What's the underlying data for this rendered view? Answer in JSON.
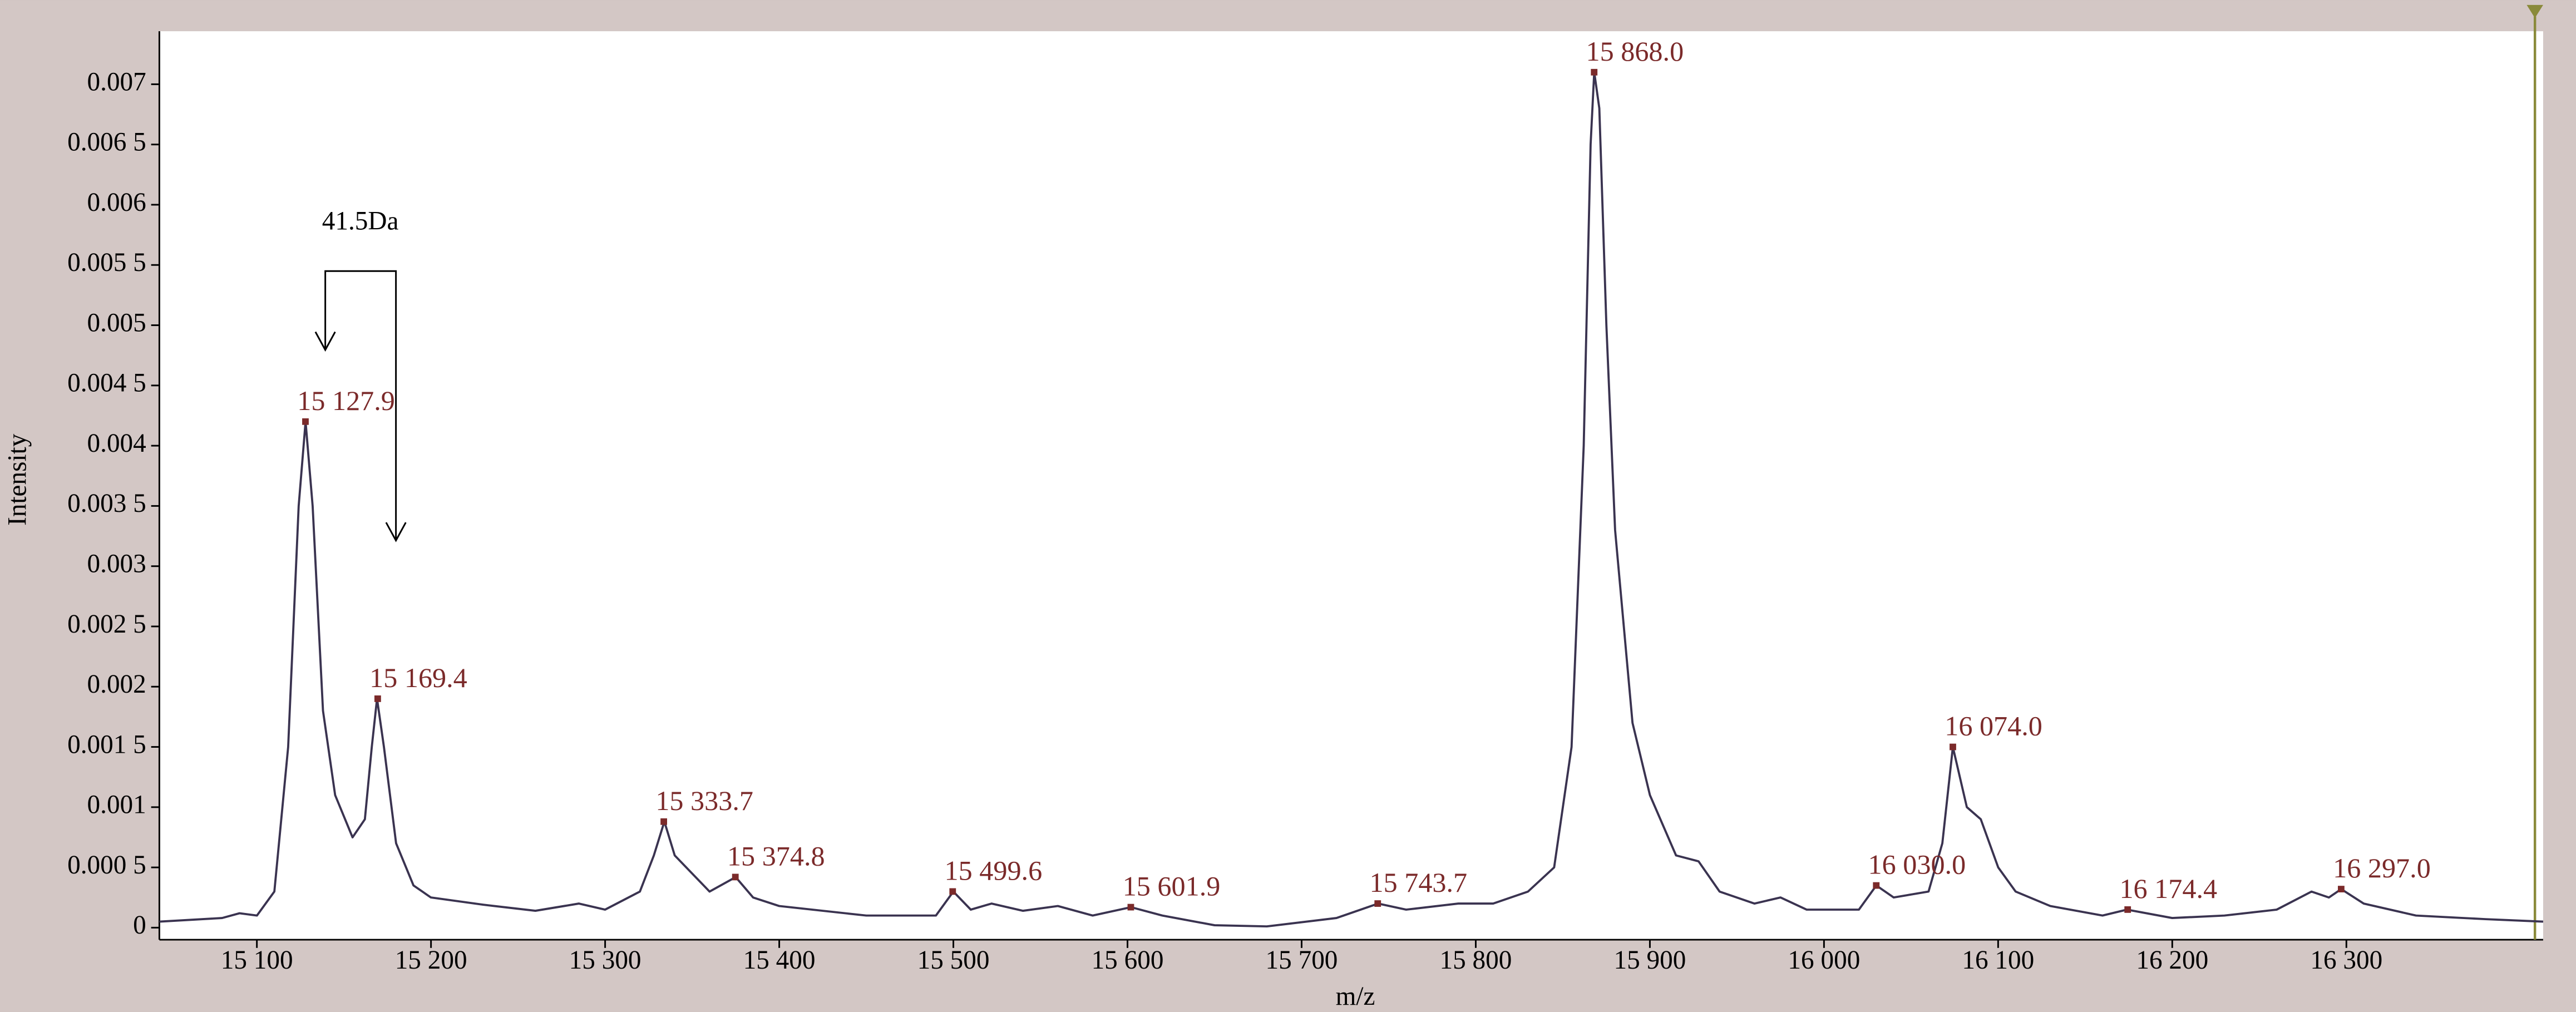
{
  "chart_data": {
    "type": "line",
    "x_label": "m/z",
    "y_label": "Intensity",
    "color": "#3a3350",
    "label_color": "#7b2a2a",
    "x": [
      15044,
      15080,
      15090,
      15100,
      15110,
      15118,
      15124,
      15128,
      15132,
      15138,
      15145,
      15155,
      15162,
      15166,
      15169,
      15173,
      15180,
      15190,
      15200,
      15230,
      15260,
      15285,
      15300,
      15320,
      15328,
      15334,
      15340,
      15350,
      15360,
      15375,
      15385,
      15400,
      15450,
      15490,
      15500,
      15510,
      15522,
      15540,
      15560,
      15580,
      15602,
      15620,
      15650,
      15680,
      15720,
      15744,
      15760,
      15790,
      15810,
      15830,
      15845,
      15855,
      15862,
      15866,
      15868,
      15871,
      15875,
      15880,
      15890,
      15900,
      15915,
      15928,
      15940,
      15960,
      15975,
      15990,
      16020,
      16030,
      16040,
      16060,
      16068,
      16074,
      16082,
      16090,
      16100,
      16110,
      16130,
      16160,
      16174,
      16200,
      16230,
      16260,
      16280,
      16290,
      16297,
      16310,
      16340,
      16380,
      16413
    ],
    "values": [
      5e-05,
      8e-05,
      0.00012,
      0.0001,
      0.0003,
      0.0015,
      0.0035,
      0.0042,
      0.0035,
      0.0018,
      0.0011,
      0.00075,
      0.0009,
      0.0015,
      0.0019,
      0.0015,
      0.0007,
      0.00035,
      0.00025,
      0.00019,
      0.00014,
      0.0002,
      0.00015,
      0.0003,
      0.0006,
      0.00088,
      0.0006,
      0.00045,
      0.0003,
      0.00042,
      0.00025,
      0.00018,
      0.0001,
      0.0001,
      0.0003,
      0.00015,
      0.0002,
      0.00014,
      0.00018,
      0.0001,
      0.00017,
      0.0001,
      2e-05,
      1e-05,
      8e-05,
      0.0002,
      0.00015,
      0.0002,
      0.0002,
      0.0003,
      0.0005,
      0.0015,
      0.004,
      0.0065,
      0.0071,
      0.0068,
      0.005,
      0.0033,
      0.0017,
      0.0011,
      0.0006,
      0.00055,
      0.0003,
      0.0002,
      0.00025,
      0.00015,
      0.00015,
      0.00035,
      0.00025,
      0.0003,
      0.0007,
      0.0015,
      0.001,
      0.0009,
      0.0005,
      0.0003,
      0.00018,
      0.0001,
      0.00015,
      8e-05,
      0.0001,
      0.00015,
      0.0003,
      0.00025,
      0.00032,
      0.0002,
      0.0001,
      7e-05,
      5e-05
    ],
    "peaks": {
      "x": [
        15127.9,
        15169.4,
        15333.7,
        15374.8,
        15499.6,
        15601.9,
        15743.7,
        15868.0,
        16030.0,
        16074.0,
        16174.4,
        16297.0
      ],
      "x_labels": [
        "15 127.9",
        "15 169.4",
        "15 333.7",
        "15 374.8",
        "15 499.6",
        "15 601.9",
        "15 743.7",
        "15 868.0",
        "16 030.0",
        "16 074.0",
        "16 174.4",
        "16 297.0"
      ],
      "values": [
        0.0042,
        0.0019,
        0.00088,
        0.00042,
        0.0003,
        0.00017,
        0.0002,
        0.0071,
        0.00035,
        0.0015,
        0.00015,
        0.00032
      ]
    },
    "annotation": "41.5Da",
    "xlim": [
      15044,
      16413
    ],
    "ylim": [
      -0.0001,
      0.00744
    ],
    "xticks": [
      {
        "value": 15100,
        "label": "15 100"
      },
      {
        "value": 15200,
        "label": "15 200"
      },
      {
        "value": 15300,
        "label": "15 300"
      },
      {
        "value": 15400,
        "label": "15 400"
      },
      {
        "value": 15500,
        "label": "15 500"
      },
      {
        "value": 15600,
        "label": "15 600"
      },
      {
        "value": 15700,
        "label": "15 700"
      },
      {
        "value": 15800,
        "label": "15 800"
      },
      {
        "value": 15900,
        "label": "15 900"
      },
      {
        "value": 16000,
        "label": "16 000"
      },
      {
        "value": 16100,
        "label": "16 100"
      },
      {
        "value": 16200,
        "label": "16 200"
      },
      {
        "value": 16300,
        "label": "16 300"
      }
    ],
    "yticks": [
      0,
      {
        "value": 0.0005,
        "label": "0.000 5"
      },
      0.001,
      {
        "value": 0.0015,
        "label": "0.001 5"
      },
      0.002,
      {
        "value": 0.0025,
        "label": "0.002 5"
      },
      0.003,
      {
        "value": 0.0035,
        "label": "0.003 5"
      },
      0.004,
      {
        "value": 0.0045,
        "label": "0.004 5"
      },
      0.005,
      {
        "value": 0.0055,
        "label": "0.005 5"
      },
      0.006,
      {
        "value": 0.0065,
        "label": "0.006 5"
      },
      0.007
    ]
  }
}
